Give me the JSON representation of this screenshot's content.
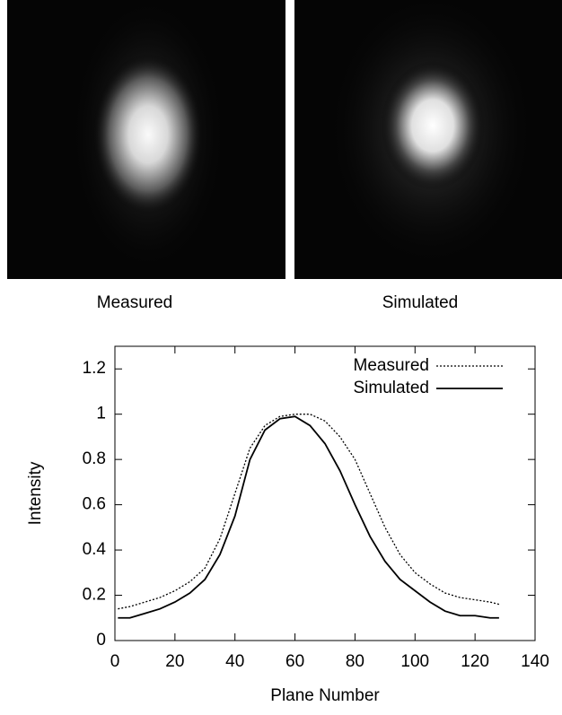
{
  "images": [
    {
      "label": "Measured"
    },
    {
      "label": "Simulated"
    }
  ],
  "chart_data": {
    "type": "line",
    "xlabel": "Plane Number",
    "ylabel": "Intensity",
    "x": [
      1,
      5,
      10,
      15,
      20,
      25,
      30,
      35,
      40,
      45,
      50,
      55,
      60,
      65,
      70,
      75,
      80,
      85,
      90,
      95,
      100,
      105,
      110,
      115,
      120,
      125,
      128
    ],
    "series": [
      {
        "name": "Measured",
        "color": "#000000",
        "style": "dotted",
        "values": [
          0.14,
          0.15,
          0.17,
          0.19,
          0.22,
          0.26,
          0.32,
          0.45,
          0.65,
          0.85,
          0.95,
          0.99,
          1.0,
          1.0,
          0.97,
          0.9,
          0.8,
          0.65,
          0.5,
          0.38,
          0.3,
          0.25,
          0.21,
          0.19,
          0.18,
          0.17,
          0.16
        ]
      },
      {
        "name": "Simulated",
        "color": "#000000",
        "style": "solid",
        "values": [
          0.1,
          0.1,
          0.12,
          0.14,
          0.17,
          0.21,
          0.27,
          0.38,
          0.55,
          0.8,
          0.93,
          0.98,
          0.99,
          0.95,
          0.87,
          0.75,
          0.6,
          0.46,
          0.35,
          0.27,
          0.22,
          0.17,
          0.13,
          0.11,
          0.11,
          0.1,
          0.1
        ]
      }
    ],
    "xlim": [
      0,
      140
    ],
    "xticks": [
      0,
      20,
      40,
      60,
      80,
      100,
      120,
      140
    ],
    "ylim": [
      0,
      1.3
    ],
    "yticks": [
      0,
      0.2,
      0.4,
      0.6,
      0.8,
      1,
      1.2
    ],
    "legend": "upper right"
  }
}
